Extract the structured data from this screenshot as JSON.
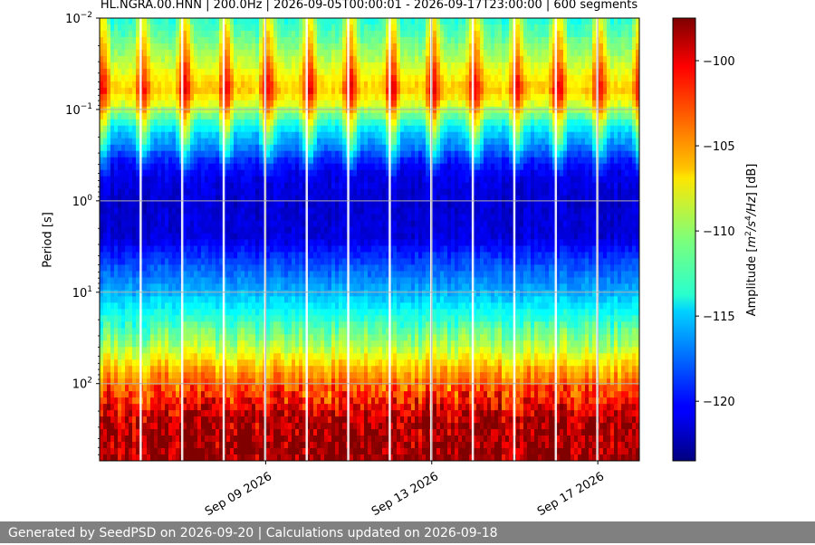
{
  "chart_data": {
    "type": "heatmap",
    "title": "HL.NGRA.00.HNN | 200.0Hz | 2026-09-05T00:00:01 - 2026-09-17T23:00:00 | 600 segments",
    "ylabel": "Period [s]",
    "yscale": "log",
    "ylim": [
      0.01,
      700
    ],
    "y_ticks": [
      0.01,
      0.1,
      1,
      10,
      100
    ],
    "y_tick_labels": [
      "10^-2",
      "10^-1",
      "10^0",
      "10^1",
      "10^2"
    ],
    "x_tick_labels": [
      "Sep 09 2026",
      "Sep 13 2026",
      "Sep 17 2026"
    ],
    "x_ticks": [
      "2026-09-09",
      "2026-09-13",
      "2026-09-17"
    ],
    "xlim": [
      "2026-09-05",
      "2026-09-18"
    ],
    "colorbar": {
      "label": "Amplitude [m²/s⁴/Hz] [dB]",
      "label_prefix": "Amplitude [",
      "label_suffix": "] [dB]",
      "range": [
        -123.5,
        -97.5
      ],
      "ticks": [
        -100,
        -105,
        -110,
        -115,
        -120
      ],
      "colormap": "jet"
    },
    "grid": true,
    "data_gaps": [
      "2026-09-06",
      "2026-09-07",
      "2026-09-08",
      "2026-09-09",
      "2026-09-10",
      "2026-09-11",
      "2026-09-12",
      "2026-09-13",
      "2026-09-14",
      "2026-09-15",
      "2026-09-16",
      "2026-09-17"
    ]
  },
  "footer": {
    "text": "Generated by SeedPSD on 2026-09-20 | Calculations updated on 2026-09-18"
  }
}
